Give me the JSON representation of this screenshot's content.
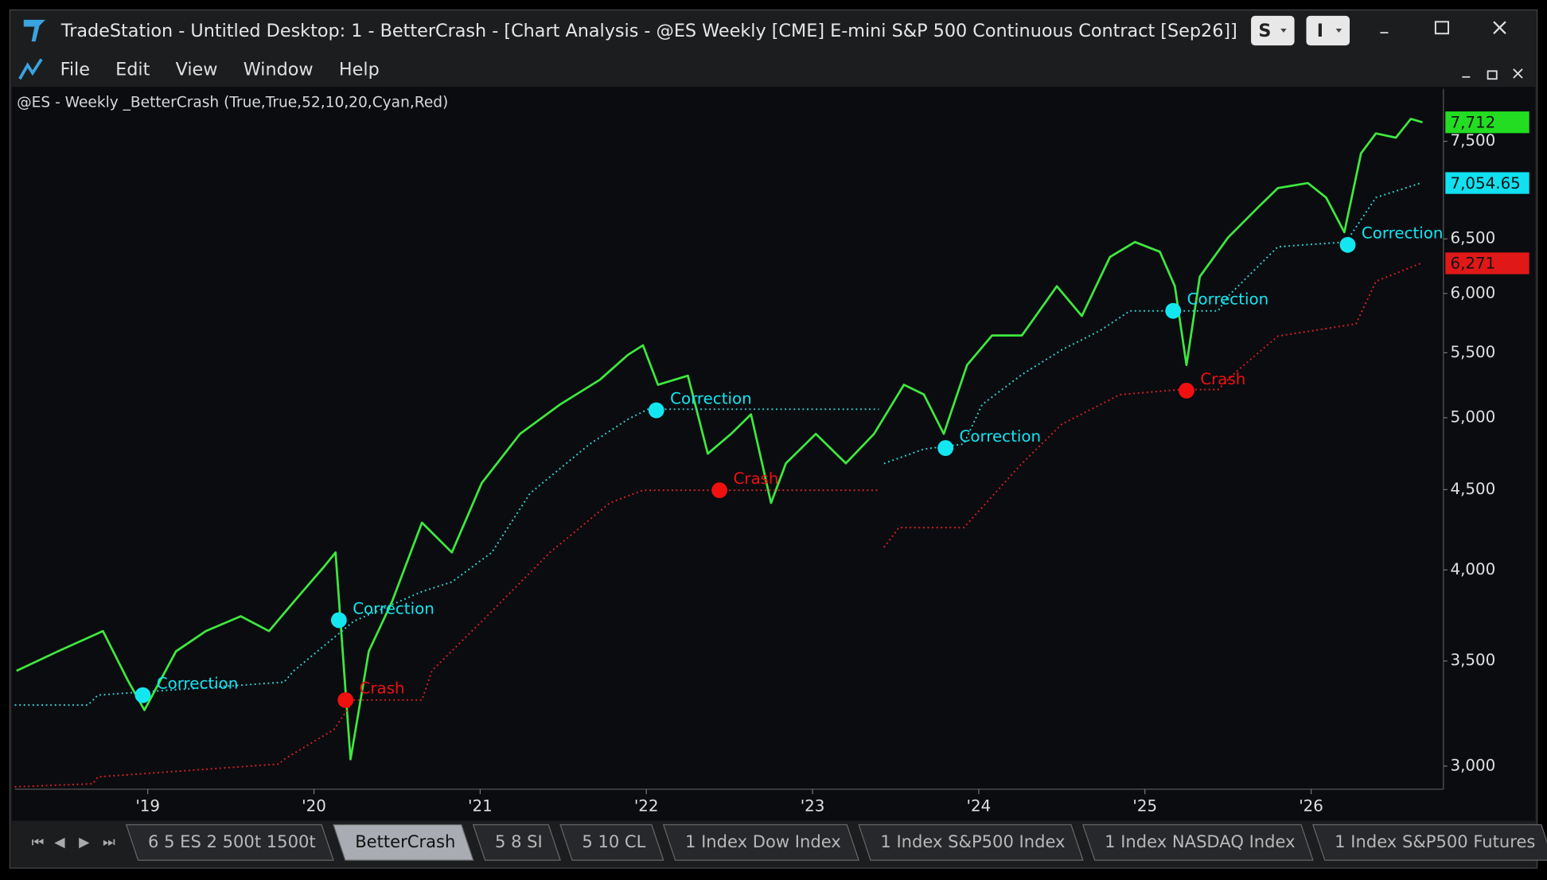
{
  "window": {
    "title": "TradeStation  - Untitled Desktop: 1 - BetterCrash - [Chart Analysis - @ES Weekly [CME] E-mini S&P 500 Continuous Contract [Sep26]]",
    "buttons": [
      "S",
      "I"
    ]
  },
  "menu": [
    "File",
    "Edit",
    "View",
    "Window",
    "Help"
  ],
  "chart_header": "@ES - Weekly  _BetterCrash (True,True,52,10,20,Cyan,Red)",
  "tabs": [
    "6 5 ES 2 500t 1500t",
    "BetterCrash",
    "5 8 SI",
    "5 10 CL",
    "1 Index Dow Index",
    "1 Index S&P500 Index",
    "1 Index NASDAQ Index",
    "1 Index S&P500 Futures"
  ],
  "active_tab": 1,
  "chart_data": {
    "type": "line",
    "log_scale": true,
    "xlim": [
      2018.2,
      2026.79
    ],
    "xticks": [
      {
        "value": 2019,
        "label": "'19"
      },
      {
        "value": 2020,
        "label": "'20"
      },
      {
        "value": 2021,
        "label": "'21"
      },
      {
        "value": 2022,
        "label": "'22"
      },
      {
        "value": 2023,
        "label": "'23"
      },
      {
        "value": 2024,
        "label": "'24"
      },
      {
        "value": 2025,
        "label": "'25"
      },
      {
        "value": 2026,
        "label": "'26"
      }
    ],
    "ylim": [
      2900,
      8100
    ],
    "yticks": [
      {
        "value": 3000,
        "label": "3,000"
      },
      {
        "value": 3500,
        "label": "3,500"
      },
      {
        "value": 4000,
        "label": "4,000"
      },
      {
        "value": 4500,
        "label": "4,500"
      },
      {
        "value": 5000,
        "label": "5,000"
      },
      {
        "value": 5500,
        "label": "5,500"
      },
      {
        "value": 6000,
        "label": "6,000"
      },
      {
        "value": 6500,
        "label": "6,500"
      },
      {
        "value": 7500,
        "label": "7,500"
      }
    ],
    "series": [
      {
        "color": "#3ee83e",
        "style": "solid",
        "x": [
          2018.21,
          2018.46,
          2018.73,
          2018.88,
          2018.98,
          2019.17,
          2019.35,
          2019.56,
          2019.73,
          2019.88,
          2020.06,
          2020.13,
          2020.19,
          2020.22,
          2020.33,
          2020.47,
          2020.65,
          2020.83,
          2021.01,
          2021.24,
          2021.48,
          2021.72,
          2021.89,
          2021.98,
          2022.07,
          2022.25,
          2022.37,
          2022.51,
          2022.63,
          2022.75,
          2022.84,
          2023.02,
          2023.2,
          2023.37,
          2023.55,
          2023.67,
          2023.79,
          2023.93,
          2024.08,
          2024.26,
          2024.47,
          2024.62,
          2024.79,
          2024.94,
          2025.09,
          2025.18,
          2025.25,
          2025.33,
          2025.5,
          2025.68,
          2025.8,
          2025.98,
          2026.09,
          2026.2,
          2026.3,
          2026.39,
          2026.51,
          2026.6,
          2026.67
        ],
        "values": [
          3450,
          3550,
          3657,
          3402,
          3257,
          3550,
          3657,
          3737,
          3657,
          3819,
          4018,
          4104,
          3352,
          3030,
          3550,
          3819,
          4287,
          4104,
          4544,
          4883,
          5098,
          5286,
          5484,
          5561,
          5248,
          5318,
          4743,
          4883,
          5025,
          4413,
          4677,
          4883,
          4677,
          4883,
          5248,
          5174,
          4883,
          5402,
          5642,
          5642,
          6064,
          5805,
          6330,
          6470,
          6378,
          6064,
          5402,
          6150,
          6512,
          6806,
          7003,
          7055,
          6906,
          6563,
          7369,
          7587,
          7540,
          7750,
          7712
        ]
      },
      {
        "color": "#33d6d6",
        "style": "dotted",
        "x": [
          2018.2,
          2018.64,
          2018.7,
          2019.82,
          2019.88,
          2020.24,
          2020.65,
          2020.83,
          2021.07,
          2021.3,
          2021.66,
          2021.89,
          2022.01,
          2023.4,
          2023.42,
          2023.43,
          2023.67,
          2023.91,
          2024.02,
          2024.26,
          2024.5,
          2024.73,
          2024.91,
          2025.44,
          2025.5,
          2025.8,
          2026.21,
          2026.39,
          2026.66
        ],
        "values": [
          3281,
          3281,
          3329,
          3393,
          3451,
          3710,
          3875,
          3930,
          4104,
          4475,
          4811,
          4990,
          5063,
          5063,
          null,
          4676,
          4776,
          4811,
          5098,
          5327,
          5524,
          5682,
          5849,
          5849,
          5976,
          6425,
          6470,
          6906,
          7055
        ]
      },
      {
        "color": "#e02020",
        "style": "dotted",
        "x": [
          2018.2,
          2018.67,
          2018.7,
          2019.79,
          2019.82,
          2020.12,
          2020.24,
          2020.65,
          2020.71,
          2021.07,
          2021.42,
          2021.78,
          2021.98,
          2023.4,
          2023.42,
          2023.43,
          2023.52,
          2023.91,
          2024.26,
          2024.5,
          2024.85,
          2025.21,
          2025.44,
          2025.56,
          2025.8,
          2026.27,
          2026.39,
          2026.66
        ],
        "values": [
          2910,
          2923,
          2953,
          3009,
          3030,
          3165,
          3305,
          3305,
          3451,
          3764,
          4104,
          4413,
          4496,
          4496,
          null,
          4135,
          4256,
          4256,
          4676,
          4953,
          5173,
          5211,
          5211,
          5362,
          5636,
          5738,
          6107,
          6271
        ]
      }
    ],
    "markers": [
      {
        "x": 2018.97,
        "y": 3329,
        "label": "Correction",
        "color": "#14e6f0"
      },
      {
        "x": 2020.15,
        "y": 3716,
        "label": "Correction",
        "color": "#14e6f0"
      },
      {
        "x": 2020.19,
        "y": 3305,
        "label": "Crash",
        "color": "#f01010"
      },
      {
        "x": 2022.06,
        "y": 5055,
        "label": "Correction",
        "color": "#14e6f0"
      },
      {
        "x": 2022.44,
        "y": 4496,
        "label": "Crash",
        "color": "#f01010"
      },
      {
        "x": 2023.8,
        "y": 4783,
        "label": "Correction",
        "color": "#14e6f0"
      },
      {
        "x": 2025.17,
        "y": 5849,
        "label": "Correction",
        "color": "#14e6f0"
      },
      {
        "x": 2025.25,
        "y": 5203,
        "label": "Crash",
        "color": "#f01010"
      },
      {
        "x": 2026.22,
        "y": 6443,
        "label": "Correction",
        "color": "#14e6f0"
      }
    ],
    "price_labels": [
      {
        "value": 7712,
        "label": "7,712",
        "color": "#22dd22"
      },
      {
        "value": 7054.65,
        "label": "7,054.65",
        "color": "#10e0f0"
      },
      {
        "value": 6271,
        "label": "6,271",
        "color": "#e01818"
      }
    ]
  }
}
